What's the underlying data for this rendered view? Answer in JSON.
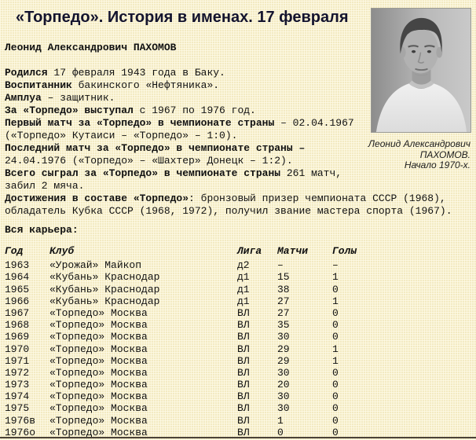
{
  "title": "«Торпедо». История в именах. 17 февраля",
  "photo": {
    "caption_lines": [
      "Леонид Александрович",
      "ПАХОМОВ.",
      "Начало 1970-х."
    ]
  },
  "bio_lines": [
    [
      {
        "b": true,
        "t": "Леонид Александрович ПАХОМОВ"
      }
    ],
    [],
    [
      {
        "b": true,
        "t": "Родился"
      },
      {
        "t": " 17 февраля 1943 года в Баку."
      }
    ],
    [
      {
        "b": true,
        "t": "Воспитанник"
      },
      {
        "t": " бакинского «Нефтяника»."
      }
    ],
    [
      {
        "b": true,
        "t": "Амплуа"
      },
      {
        "t": " – защитник."
      }
    ],
    [
      {
        "b": true,
        "t": "За «Торпедо» выступал"
      },
      {
        "t": " с 1967 по 1976 год."
      }
    ],
    [
      {
        "b": true,
        "t": "Первый матч за «Торпедо» в чемпионате страны"
      },
      {
        "t": " – 02.04.1967"
      }
    ],
    [
      {
        "t": "(«Торпедо» Кутаиси – «Торпедо» – 1:0)."
      }
    ],
    [
      {
        "b": true,
        "t": "Последний матч за «Торпедо» в чемпионате страны –"
      }
    ],
    [
      {
        "t": "24.04.1976 («Торпедо» – «Шахтер» Донецк – 1:2)."
      }
    ],
    [
      {
        "b": true,
        "t": "Всего сыграл за «Торпедо» в чемпионате страны"
      },
      {
        "t": " 261 матч,"
      }
    ],
    [
      {
        "t": "забил 2 мяча."
      }
    ],
    [
      {
        "b": true,
        "t": "Достижения в составе «Торпедо»"
      },
      {
        "t": ": бронзовый призер чемпионата СССР (1968),"
      }
    ],
    [
      {
        "t": "обладатель Кубка СССР (1968, 1972), получил звание мастера спорта (1967)."
      }
    ]
  ],
  "career": {
    "heading": "Вся карьера:",
    "table": {
      "headers": [
        "Год",
        "Клуб",
        "Лига",
        "Матчи",
        "Голы"
      ],
      "rows": [
        [
          "1963",
          "«Урожай» Майкоп",
          "д2",
          "–",
          "–"
        ],
        [
          "1964",
          "«Кубань» Краснодар",
          "д1",
          "15",
          "1"
        ],
        [
          "1965",
          "«Кубань» Краснодар",
          "д1",
          "38",
          "0"
        ],
        [
          "1966",
          "«Кубань» Краснодар",
          "д1",
          "27",
          "1"
        ],
        [
          "1967",
          "«Торпедо» Москва",
          "ВЛ",
          "27",
          "0"
        ],
        [
          "1968",
          "«Торпедо» Москва",
          "ВЛ",
          "35",
          "0"
        ],
        [
          "1969",
          "«Торпедо» Москва",
          "ВЛ",
          "30",
          "0"
        ],
        [
          "1970",
          "«Торпедо» Москва",
          "ВЛ",
          "29",
          "1"
        ],
        [
          "1971",
          "«Торпедо» Москва",
          "ВЛ",
          "29",
          "1"
        ],
        [
          "1972",
          "«Торпедо» Москва",
          "ВЛ",
          "30",
          "0"
        ],
        [
          "1973",
          "«Торпедо» Москва",
          "ВЛ",
          "20",
          "0"
        ],
        [
          "1974",
          "«Торпедо» Москва",
          "ВЛ",
          "30",
          "0"
        ],
        [
          "1975",
          "«Торпедо» Москва",
          "ВЛ",
          "30",
          "0"
        ],
        [
          "1976в",
          "«Торпедо» Москва",
          "ВЛ",
          "1",
          "0"
        ],
        [
          "1976о",
          "«Торпедо» Москва",
          "ВЛ",
          "0",
          "0"
        ]
      ]
    }
  },
  "colors": {
    "background": "#f3eac2",
    "title_text": "#14142e",
    "body_text": "#111111",
    "bottom_rule": "#4a4238"
  }
}
